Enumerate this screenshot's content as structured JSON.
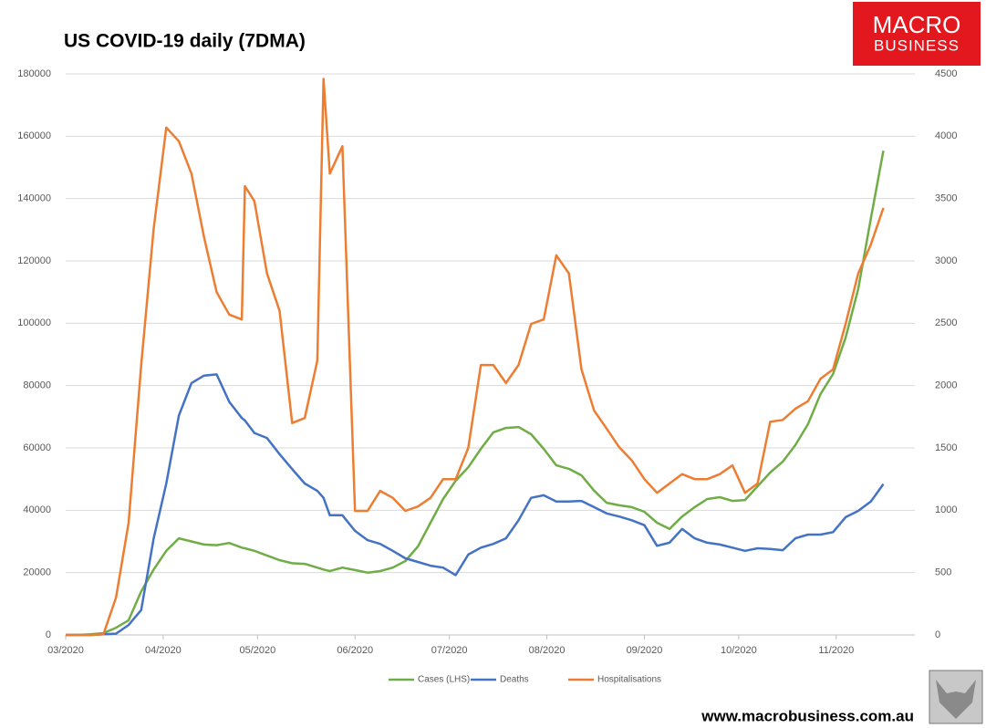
{
  "chart_data": {
    "type": "line",
    "title": "US COVID-19 daily (7DMA)",
    "x": [
      0,
      4,
      8,
      12,
      16,
      20,
      24,
      28,
      32,
      36,
      40,
      44,
      48,
      52,
      56,
      57,
      60,
      64,
      68,
      72,
      76,
      80,
      82,
      84,
      88,
      92,
      96,
      100,
      104,
      108,
      112,
      116,
      120,
      124,
      128,
      132,
      136,
      140,
      144,
      148,
      152,
      156,
      160,
      164,
      168,
      172,
      176,
      180,
      184,
      188,
      192,
      196,
      200,
      204,
      208,
      212,
      216,
      220,
      224,
      228,
      232,
      236,
      240,
      244,
      248,
      252,
      256,
      260
    ],
    "xlim": [
      0,
      270
    ],
    "xticks": [
      {
        "value": 0,
        "label": "03/2020"
      },
      {
        "value": 31,
        "label": "04/2020"
      },
      {
        "value": 61,
        "label": "05/2020"
      },
      {
        "value": 92,
        "label": "06/2020"
      },
      {
        "value": 122,
        "label": "07/2020"
      },
      {
        "value": 153,
        "label": "08/2020"
      },
      {
        "value": 184,
        "label": "09/2020"
      },
      {
        "value": 214,
        "label": "10/2020"
      },
      {
        "value": 245,
        "label": "11/2020"
      }
    ],
    "ylim": [
      0,
      180000
    ],
    "yticks": [
      0,
      20000,
      40000,
      60000,
      80000,
      100000,
      120000,
      140000,
      160000,
      180000
    ],
    "y2lim": [
      0,
      4500
    ],
    "y2ticks": [
      0,
      500,
      1000,
      1500,
      2000,
      2500,
      3000,
      3500,
      4000,
      4500
    ],
    "grid": true,
    "legend": "bottom",
    "series": [
      {
        "name": "Cases (LHS)",
        "color": "#70ad47",
        "axis": "y",
        "values": [
          0,
          0,
          200,
          600,
          2300,
          4700,
          14000,
          21000,
          27000,
          31000,
          30000,
          29000,
          28800,
          29500,
          28000,
          27800,
          27000,
          25500,
          24000,
          23000,
          22800,
          21600,
          21000,
          20500,
          21600,
          20800,
          20000,
          20500,
          21600,
          23700,
          28400,
          36000,
          43600,
          49500,
          53800,
          59700,
          65000,
          66400,
          66700,
          64400,
          59700,
          54400,
          53300,
          51200,
          46300,
          42400,
          41600,
          41000,
          39500,
          36000,
          34000,
          38000,
          41000,
          43600,
          44200,
          43000,
          43300,
          47700,
          52100,
          55600,
          60900,
          67600,
          77300,
          83700,
          95400,
          111000,
          133500,
          155400
        ]
      },
      {
        "name": "Deaths",
        "color": "#4472c4",
        "axis": "y2",
        "values": [
          0,
          0,
          0,
          5,
          10,
          80,
          200,
          775,
          1215,
          1760,
          2020,
          2080,
          2090,
          1870,
          1740,
          1720,
          1620,
          1580,
          1450,
          1330,
          1215,
          1155,
          1100,
          960,
          960,
          835,
          760,
          730,
          675,
          615,
          585,
          555,
          540,
          480,
          645,
          700,
          730,
          775,
          920,
          1100,
          1120,
          1070,
          1070,
          1075,
          1025,
          975,
          950,
          920,
          880,
          715,
          740,
          850,
          775,
          740,
          725,
          700,
          675,
          695,
          690,
          680,
          775,
          805,
          805,
          825,
          945,
          995,
          1070,
          1210
        ]
      },
      {
        "name": "Hospitalisations",
        "color": "#ed7d31",
        "axis": "y2",
        "values": [
          0,
          0,
          0,
          5,
          300,
          900,
          2165,
          3260,
          4070,
          3960,
          3700,
          3190,
          2750,
          2570,
          2530,
          3600,
          3480,
          2900,
          2600,
          1700,
          1740,
          2200,
          4460,
          3700,
          3920,
          995,
          995,
          1155,
          1100,
          995,
          1030,
          1100,
          1250,
          1250,
          1500,
          2165,
          2165,
          2020,
          2165,
          2495,
          2530,
          3045,
          2900,
          2130,
          1800,
          1655,
          1505,
          1400,
          1250,
          1140,
          1215,
          1290,
          1250,
          1250,
          1290,
          1360,
          1140,
          1215,
          1710,
          1725,
          1815,
          1875,
          2055,
          2130,
          2495,
          2900,
          3130,
          3425
        ]
      }
    ]
  },
  "branding": {
    "logo": [
      "MACRO",
      "BUSINESS"
    ],
    "url": "www.macrobusiness.com.au"
  }
}
